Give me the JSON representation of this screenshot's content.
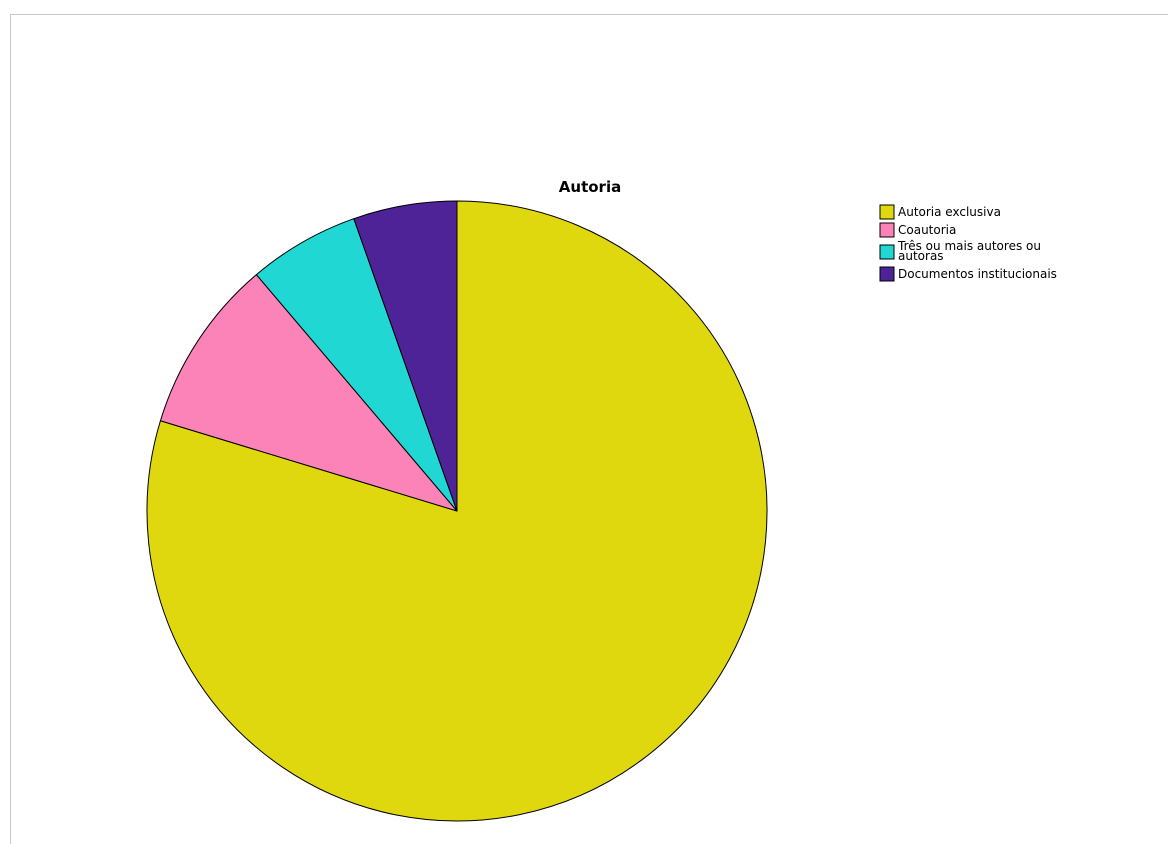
{
  "chart_data": {
    "type": "pie",
    "title": "Autoria",
    "start_angle_deg": 0,
    "direction": "clockwise",
    "slices": [
      {
        "label": "Autoria exclusiva",
        "value": 79.7,
        "color": "#e0d80f"
      },
      {
        "label": "Coautoria",
        "value": 9.1,
        "color": "#fb83b7"
      },
      {
        "label": "Três ou mais autores ou autoras",
        "legend_lines": [
          "Três ou mais autores ou",
          "autoras"
        ],
        "value": 5.8,
        "color": "#20d7d4"
      },
      {
        "label": "Documentos institucionais",
        "value": 5.4,
        "color": "#4e2398"
      }
    ],
    "legend_position": "right"
  }
}
